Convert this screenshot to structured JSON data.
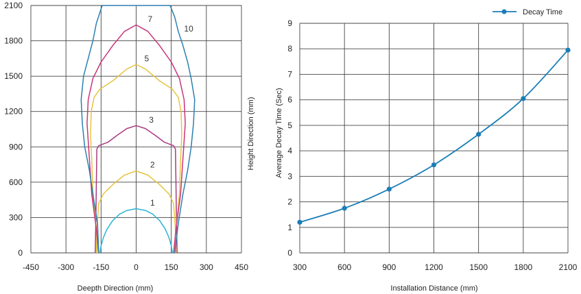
{
  "chart_data": [
    {
      "type": "line",
      "title": "",
      "xlabel": "Deepth Direction (mm)",
      "ylabel": "Height Direction (mm)",
      "xlim": [
        -450,
        450
      ],
      "ylim": [
        0,
        2100
      ],
      "xticks": [
        -450,
        -300,
        -150,
        0,
        150,
        300,
        450
      ],
      "xtick_labels": [
        "-450",
        "-300",
        "-150",
        "0",
        "150",
        "300",
        "450"
      ],
      "yticks": [
        0,
        300,
        600,
        900,
        1200,
        1500,
        1800,
        2100
      ],
      "ytick_labels": [
        "0",
        "300",
        "600",
        "900",
        "1200",
        "1500",
        "1800",
        "2100"
      ],
      "grid": true,
      "series": [
        {
          "name": "1",
          "color": "#2bb4d6",
          "points": [
            [
              -155,
              0
            ],
            [
              -150,
              60
            ],
            [
              -140,
              130
            ],
            [
              -125,
              200
            ],
            [
              -100,
              275
            ],
            [
              -70,
              330
            ],
            [
              -40,
              360
            ],
            [
              0,
              375
            ],
            [
              40,
              360
            ],
            [
              70,
              330
            ],
            [
              100,
              275
            ],
            [
              125,
              200
            ],
            [
              140,
              130
            ],
            [
              150,
              60
            ],
            [
              155,
              0
            ]
          ],
          "label_at": [
            60,
            400
          ]
        },
        {
          "name": "2",
          "color": "#e6c440",
          "points": [
            [
              -170,
              0
            ],
            [
              -168,
              200
            ],
            [
              -160,
              420
            ],
            [
              -140,
              500
            ],
            [
              -100,
              580
            ],
            [
              -50,
              660
            ],
            [
              0,
              695
            ],
            [
              50,
              660
            ],
            [
              100,
              580
            ],
            [
              140,
              500
            ],
            [
              160,
              420
            ],
            [
              168,
              200
            ],
            [
              170,
              0
            ]
          ],
          "label_at": [
            60,
            725
          ]
        },
        {
          "name": "3",
          "color": "#a83a80",
          "points": [
            [
              -175,
              0
            ],
            [
              -172,
              300
            ],
            [
              -170,
              600
            ],
            [
              -168,
              880
            ],
            [
              -160,
              910
            ],
            [
              -120,
              940
            ],
            [
              -80,
              1000
            ],
            [
              -40,
              1055
            ],
            [
              0,
              1080
            ],
            [
              40,
              1055
            ],
            [
              80,
              1000
            ],
            [
              120,
              940
            ],
            [
              160,
              910
            ],
            [
              168,
              880
            ],
            [
              170,
              600
            ],
            [
              172,
              300
            ],
            [
              175,
              0
            ]
          ],
          "label_at": [
            55,
            1105
          ]
        },
        {
          "name": "5",
          "color": "#e6c440",
          "points": [
            [
              -165,
              0
            ],
            [
              -170,
              200
            ],
            [
              -185,
              500
            ],
            [
              -190,
              800
            ],
            [
              -195,
              1000
            ],
            [
              -192,
              1200
            ],
            [
              -180,
              1320
            ],
            [
              -155,
              1390
            ],
            [
              -100,
              1460
            ],
            [
              -40,
              1560
            ],
            [
              0,
              1600
            ],
            [
              40,
              1560
            ],
            [
              100,
              1460
            ],
            [
              155,
              1390
            ],
            [
              180,
              1320
            ],
            [
              192,
              1200
            ],
            [
              195,
              1000
            ],
            [
              190,
              800
            ],
            [
              185,
              500
            ],
            [
              170,
              200
            ],
            [
              165,
              0
            ]
          ],
          "label_at": [
            35,
            1625
          ]
        },
        {
          "name": "7",
          "color": "#c8337a",
          "points": [
            [
              -160,
              0
            ],
            [
              -170,
              200
            ],
            [
              -190,
              500
            ],
            [
              -200,
              800
            ],
            [
              -210,
              1100
            ],
            [
              -205,
              1300
            ],
            [
              -185,
              1480
            ],
            [
              -150,
              1620
            ],
            [
              -100,
              1760
            ],
            [
              -50,
              1880
            ],
            [
              0,
              1935
            ],
            [
              50,
              1880
            ],
            [
              100,
              1760
            ],
            [
              150,
              1620
            ],
            [
              185,
              1480
            ],
            [
              205,
              1300
            ],
            [
              210,
              1100
            ],
            [
              200,
              800
            ],
            [
              190,
              500
            ],
            [
              170,
              200
            ],
            [
              160,
              0
            ]
          ],
          "label_at": [
            50,
            1960
          ]
        },
        {
          "name": "10",
          "color": "#2a7fb0",
          "points": [
            [
              -160,
              0
            ],
            [
              -165,
              250
            ],
            [
              -185,
              500
            ],
            [
              -200,
              700
            ],
            [
              -220,
              900
            ],
            [
              -230,
              1100
            ],
            [
              -235,
              1300
            ],
            [
              -225,
              1500
            ],
            [
              -205,
              1650
            ],
            [
              -185,
              1800
            ],
            [
              -170,
              1950
            ],
            [
              -145,
              2100
            ],
            [
              145,
              2100
            ],
            [
              165,
              2000
            ],
            [
              180,
              1880
            ],
            [
              200,
              1760
            ],
            [
              220,
              1620
            ],
            [
              235,
              1480
            ],
            [
              250,
              1300
            ],
            [
              245,
              1100
            ],
            [
              235,
              900
            ],
            [
              220,
              700
            ],
            [
              200,
              500
            ],
            [
              180,
              250
            ],
            [
              165,
              0
            ]
          ],
          "label_at": [
            205,
            1880
          ]
        }
      ]
    },
    {
      "type": "line",
      "title": "",
      "xlabel": "Installation Distance (mm)",
      "ylabel": "Average Decay Time (Sec)",
      "x": [
        300,
        600,
        900,
        1200,
        1500,
        1800,
        2100
      ],
      "xlim": [
        300,
        2100
      ],
      "ylim": [
        0,
        9
      ],
      "xticks": [
        300,
        600,
        900,
        1200,
        1500,
        1800,
        2100
      ],
      "xtick_labels": [
        "300",
        "600",
        "900",
        "1200",
        "1500",
        "1800",
        "2100"
      ],
      "yticks": [
        0,
        1,
        2,
        3,
        4,
        5,
        6,
        7,
        8,
        9
      ],
      "ytick_labels": [
        "0",
        "1",
        "2",
        "3",
        "4",
        "5",
        "6",
        "7",
        "8",
        "9"
      ],
      "grid": true,
      "legend_position": "top-right",
      "series": [
        {
          "name": "Decay Time",
          "color": "#1a7db8",
          "values": [
            1.2,
            1.75,
            2.5,
            3.45,
            4.65,
            6.05,
            7.95
          ]
        }
      ]
    }
  ]
}
